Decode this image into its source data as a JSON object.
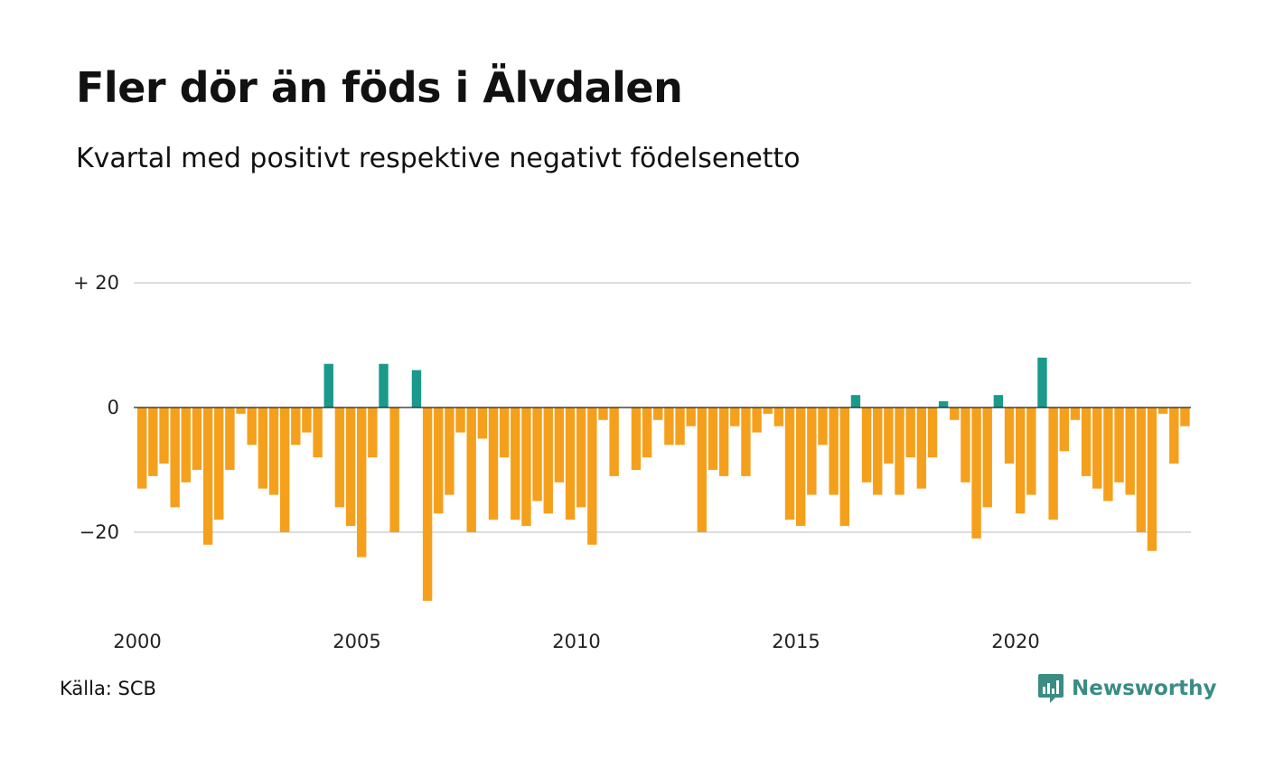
{
  "title": "Fler dör än föds i Älvdalen",
  "subtitle": "Kvartal med positivt respektive negativt födelsenetto",
  "source": "Källa: SCB",
  "logo": {
    "text": "Newsworthy",
    "icon": "newsworthy-logo-icon"
  },
  "colors": {
    "positive": "#1a9a8c",
    "negative": "#f5a01c",
    "grid": "#dddddd",
    "zero": "#222222",
    "logo": "#3a8c85"
  },
  "chart_data": {
    "type": "bar",
    "x_start": "2000 Q1",
    "grid": true,
    "ylim": [
      -31,
      20
    ],
    "y_ticks": [
      {
        "value": 20,
        "label": "+ 20"
      },
      {
        "value": 0,
        "label": "0"
      },
      {
        "value": -20,
        "label": "−20"
      }
    ],
    "x_ticks": [
      "2000",
      "2005",
      "2010",
      "2015",
      "2020"
    ],
    "values": [
      -13,
      -11,
      -9,
      -16,
      -12,
      -10,
      -22,
      -18,
      -10,
      -1,
      -6,
      -13,
      -14,
      -20,
      -6,
      -4,
      -8,
      7,
      -16,
      -19,
      -24,
      -8,
      7,
      -20,
      0,
      6,
      -31,
      -17,
      -14,
      -4,
      -20,
      -5,
      -18,
      -8,
      -18,
      -19,
      -15,
      -17,
      -12,
      -18,
      -16,
      -22,
      -2,
      -11,
      0,
      -10,
      -8,
      -2,
      -6,
      -6,
      -3,
      -20,
      -10,
      -11,
      -3,
      -11,
      -4,
      -1,
      -3,
      -18,
      -19,
      -14,
      -6,
      -14,
      -19,
      2,
      -12,
      -14,
      -9,
      -14,
      -8,
      -13,
      -8,
      1,
      -2,
      -12,
      -21,
      -16,
      2,
      -9,
      -17,
      -14,
      8,
      -18,
      -7,
      -2,
      -11,
      -13,
      -15,
      -12,
      -14,
      -20,
      -23,
      -1,
      -9,
      -3
    ]
  }
}
